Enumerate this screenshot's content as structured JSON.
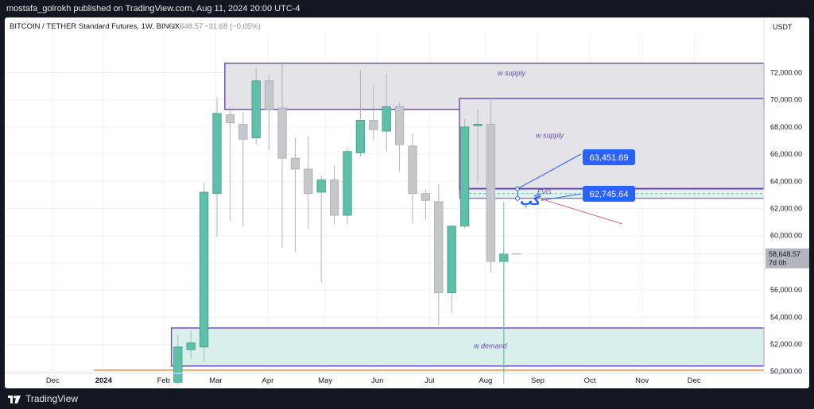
{
  "publisher_line": "mostafa_golrokh published on TradingView.com, Aug 11, 2024 20:00 UTC-4",
  "brand": "TradingView",
  "symbol": {
    "name": "BITCOIN / TETHER Standard Futures, 1W, BINGX",
    "last": "58,648.57",
    "change": "−31.68 (−0.05%)",
    "currency": "USDT",
    "countdown": "7d 0h"
  },
  "colors": {
    "up": "#5fbfa9",
    "down": "#c6c7cb",
    "zone_border": "#6a47b8",
    "supply_fill": "#e3e3e8",
    "demand_fill": "#d8efec",
    "label_blue": "#2962ff",
    "annot_purple": "#6a47b8",
    "red_line": "#d9667a",
    "orange_line": "#f2994a",
    "text_on_blue": "#ffffff"
  },
  "annotations": {
    "supply_1": "w supply",
    "supply_2": "w supply",
    "demand": "w demand",
    "fvg": "FVG",
    "gap_persian": "گپ",
    "price_label_high": "63,451.69",
    "price_label_low": "62,745.64"
  },
  "chart_data": {
    "type": "candlestick",
    "timeframe": "1W",
    "y_axis": {
      "min": 49000,
      "max": 75000,
      "ticks": [
        {
          "value": 50000,
          "label": "50,000.00"
        },
        {
          "value": 52000,
          "label": "52,000.00"
        },
        {
          "value": 54000,
          "label": "54,000.00"
        },
        {
          "value": 56000,
          "label": "56,000.00"
        },
        {
          "value": 58000,
          "label": "58,000.00"
        },
        {
          "value": 60000,
          "label": "60,000.00"
        },
        {
          "value": 62000,
          "label": "62,000.00"
        },
        {
          "value": 64000,
          "label": "64,000.00"
        },
        {
          "value": 66000,
          "label": "66,000.00"
        },
        {
          "value": 68000,
          "label": "68,000.00"
        },
        {
          "value": 70000,
          "label": "70,000.00"
        },
        {
          "value": 72000,
          "label": "72,000.00"
        }
      ]
    },
    "x_axis": {
      "ticks": [
        {
          "index": -9.6,
          "label": "Dec",
          "bold": false
        },
        {
          "index": -5.7,
          "label": "2024",
          "bold": true
        },
        {
          "index": -1.1,
          "label": "Feb",
          "bold": false
        },
        {
          "index": 2.9,
          "label": "Mar",
          "bold": false
        },
        {
          "index": 6.9,
          "label": "Apr",
          "bold": false
        },
        {
          "index": 11.3,
          "label": "May",
          "bold": false
        },
        {
          "index": 15.3,
          "label": "Jun",
          "bold": false
        },
        {
          "index": 19.3,
          "label": "Jul",
          "bold": false
        },
        {
          "index": 23.6,
          "label": "Aug",
          "bold": false
        },
        {
          "index": 27.6,
          "label": "Sep",
          "bold": false
        },
        {
          "index": 31.6,
          "label": "Oct",
          "bold": false
        },
        {
          "index": 35.6,
          "label": "Nov",
          "bold": false
        },
        {
          "index": 39.6,
          "label": "Dec",
          "bold": false
        }
      ]
    },
    "candles": [
      {
        "o": 49200,
        "h": 52700,
        "l": 49000,
        "c": 51800
      },
      {
        "o": 51600,
        "h": 53000,
        "l": 50900,
        "c": 52100
      },
      {
        "o": 51800,
        "h": 63900,
        "l": 50700,
        "c": 63200
      },
      {
        "o": 63100,
        "h": 70200,
        "l": 59900,
        "c": 69000
      },
      {
        "o": 68900,
        "h": 69500,
        "l": 61100,
        "c": 68300
      },
      {
        "o": 68200,
        "h": 69100,
        "l": 60700,
        "c": 67100
      },
      {
        "o": 67200,
        "h": 72400,
        "l": 66700,
        "c": 71400
      },
      {
        "o": 71400,
        "h": 71900,
        "l": 66300,
        "c": 69300
      },
      {
        "o": 69400,
        "h": 72800,
        "l": 59100,
        "c": 65700
      },
      {
        "o": 65700,
        "h": 67200,
        "l": 58800,
        "c": 64900
      },
      {
        "o": 64900,
        "h": 67300,
        "l": 60500,
        "c": 63100
      },
      {
        "o": 63200,
        "h": 64400,
        "l": 56600,
        "c": 64100
      },
      {
        "o": 64100,
        "h": 65200,
        "l": 60900,
        "c": 61500
      },
      {
        "o": 61500,
        "h": 66500,
        "l": 60800,
        "c": 66200
      },
      {
        "o": 66100,
        "h": 72200,
        "l": 65800,
        "c": 68500
      },
      {
        "o": 68500,
        "h": 71100,
        "l": 67000,
        "c": 67800
      },
      {
        "o": 67700,
        "h": 71900,
        "l": 66200,
        "c": 69500
      },
      {
        "o": 69500,
        "h": 69800,
        "l": 64700,
        "c": 66700
      },
      {
        "o": 66600,
        "h": 67500,
        "l": 60900,
        "c": 63100
      },
      {
        "o": 63100,
        "h": 63400,
        "l": 61200,
        "c": 62600
      },
      {
        "o": 62500,
        "h": 63800,
        "l": 53400,
        "c": 55800
      },
      {
        "o": 55800,
        "h": 60800,
        "l": 54300,
        "c": 60700
      },
      {
        "o": 60700,
        "h": 68600,
        "l": 60500,
        "c": 68000
      },
      {
        "o": 68100,
        "h": 69300,
        "l": 63900,
        "c": 68200
      },
      {
        "o": 68200,
        "h": 70100,
        "l": 57300,
        "c": 58100
      },
      {
        "o": 58100,
        "h": 58900,
        "l": 49100,
        "c": 58648.57
      },
      {
        "o": 58648.57,
        "h": 58648.57,
        "l": 58648.57,
        "c": 58648.57
      }
    ],
    "zones": [
      {
        "name": "w supply",
        "from_index": 3.6,
        "to_index": 45,
        "top": 72700,
        "bottom": 69300
      },
      {
        "name": "w supply",
        "from_index": 21.6,
        "to_index": 45,
        "top": 70100,
        "bottom": 63450
      },
      {
        "name": "FVG",
        "from_index": 21.6,
        "to_index": 45,
        "top": 63451.69,
        "bottom": 62745.64
      },
      {
        "name": "w demand",
        "from_index": -0.5,
        "to_index": 45,
        "top": 53200,
        "bottom": 50400
      }
    ],
    "last_price": 58648.57
  }
}
